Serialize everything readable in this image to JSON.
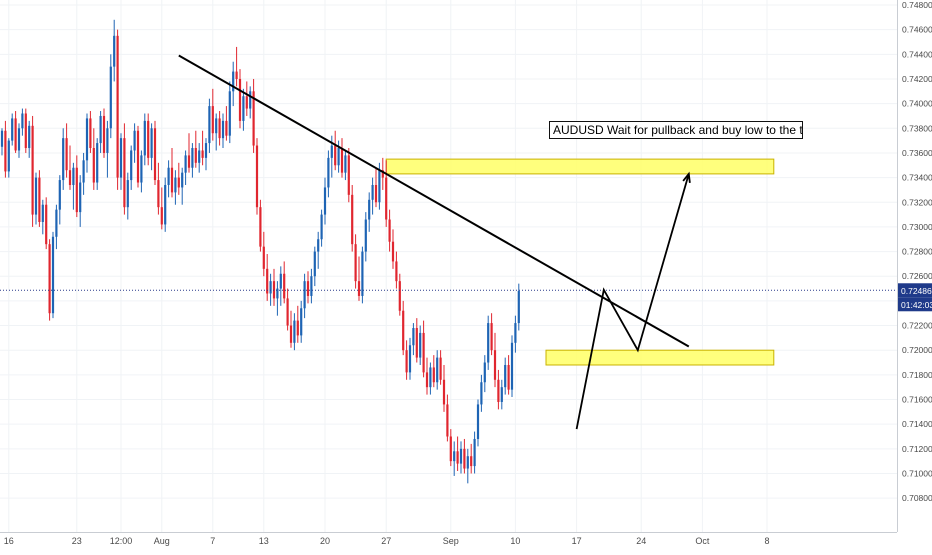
{
  "chart_data": {
    "type": "candlestick",
    "symbol": "AUDUSD",
    "annotation": "AUDUSD Wait for pullback and buy low to the tp",
    "last_price": "0.72486",
    "countdown": "01:42:03",
    "colors": {
      "up": "#1e64b4",
      "down": "#e0262f",
      "price_line": "#2a3a8c",
      "zone_fill": "#ffff66",
      "zone_stroke": "#c9b200",
      "drawing": "#000000",
      "price_label_bg": "#1f3a8a"
    },
    "ylim": [
      0.7072,
      0.748
    ],
    "y_ticks": [
      "0.74800",
      "0.74600",
      "0.74400",
      "0.74200",
      "0.74000",
      "0.73800",
      "0.73600",
      "0.73400",
      "0.73200",
      "0.73000",
      "0.72800",
      "0.72600",
      "0.72400",
      "0.72200",
      "0.72000",
      "0.71800",
      "0.71600",
      "0.71400",
      "0.71200",
      "0.71000",
      "0.70800"
    ],
    "x_ticks": [
      {
        "label": "16",
        "bar": 2
      },
      {
        "label": "23",
        "bar": 22
      },
      {
        "label": "12:00",
        "bar": 35
      },
      {
        "label": "Aug",
        "bar": 47
      },
      {
        "label": "7",
        "bar": 62
      },
      {
        "label": "13",
        "bar": 77
      },
      {
        "label": "20",
        "bar": 95
      },
      {
        "label": "27",
        "bar": 113
      },
      {
        "label": "Sep",
        "bar": 132
      },
      {
        "label": "10",
        "bar": 151
      },
      {
        "label": "17",
        "bar": 169
      },
      {
        "label": "24",
        "bar": 188
      },
      {
        "label": "Oct",
        "bar": 206
      },
      {
        "label": "8",
        "bar": 225
      }
    ],
    "candles": [
      [
        0.7365,
        0.738,
        0.7358,
        0.7378
      ],
      [
        0.7378,
        0.7386,
        0.734,
        0.7345
      ],
      [
        0.7345,
        0.7372,
        0.734,
        0.737
      ],
      [
        0.737,
        0.7392,
        0.7366,
        0.7388
      ],
      [
        0.7388,
        0.7394,
        0.736,
        0.7362
      ],
      [
        0.7362,
        0.7384,
        0.7356,
        0.738
      ],
      [
        0.738,
        0.7396,
        0.7374,
        0.7392
      ],
      [
        0.7392,
        0.7396,
        0.736,
        0.7364
      ],
      [
        0.7364,
        0.7386,
        0.7356,
        0.7382
      ],
      [
        0.7382,
        0.739,
        0.73,
        0.731
      ],
      [
        0.731,
        0.7344,
        0.7302,
        0.734
      ],
      [
        0.734,
        0.7346,
        0.73,
        0.7304
      ],
      [
        0.7304,
        0.7322,
        0.7294,
        0.7318
      ],
      [
        0.7318,
        0.7324,
        0.7282,
        0.7286
      ],
      [
        0.7286,
        0.729,
        0.7224,
        0.723
      ],
      [
        0.723,
        0.7296,
        0.7226,
        0.7292
      ],
      [
        0.7292,
        0.7318,
        0.7282,
        0.7314
      ],
      [
        0.7314,
        0.7342,
        0.7302,
        0.7338
      ],
      [
        0.7338,
        0.738,
        0.733,
        0.7372
      ],
      [
        0.7372,
        0.7384,
        0.734,
        0.7346
      ],
      [
        0.7346,
        0.7366,
        0.733,
        0.7334
      ],
      [
        0.7334,
        0.7352,
        0.7314,
        0.7348
      ],
      [
        0.7348,
        0.7358,
        0.7308,
        0.7312
      ],
      [
        0.7312,
        0.7342,
        0.73,
        0.7336
      ],
      [
        0.7336,
        0.736,
        0.7326,
        0.7354
      ],
      [
        0.7354,
        0.7392,
        0.7344,
        0.7388
      ],
      [
        0.7388,
        0.7394,
        0.736,
        0.7364
      ],
      [
        0.7364,
        0.738,
        0.733,
        0.7336
      ],
      [
        0.7336,
        0.7372,
        0.733,
        0.7368
      ],
      [
        0.7368,
        0.7394,
        0.736,
        0.739
      ],
      [
        0.739,
        0.7396,
        0.7356,
        0.736
      ],
      [
        0.736,
        0.7386,
        0.734,
        0.738
      ],
      [
        0.738,
        0.744,
        0.7372,
        0.743
      ],
      [
        0.743,
        0.7468,
        0.7418,
        0.7455
      ],
      [
        0.7455,
        0.746,
        0.733,
        0.734
      ],
      [
        0.734,
        0.7376,
        0.733,
        0.7372
      ],
      [
        0.7372,
        0.7384,
        0.731,
        0.7316
      ],
      [
        0.7316,
        0.7344,
        0.7306,
        0.7338
      ],
      [
        0.7338,
        0.7366,
        0.733,
        0.7362
      ],
      [
        0.7362,
        0.7384,
        0.7352,
        0.7378
      ],
      [
        0.7378,
        0.7382,
        0.7332,
        0.7336
      ],
      [
        0.7336,
        0.7362,
        0.7328,
        0.7358
      ],
      [
        0.7358,
        0.7392,
        0.735,
        0.7386
      ],
      [
        0.7386,
        0.7392,
        0.735,
        0.7356
      ],
      [
        0.7356,
        0.7384,
        0.7346,
        0.738
      ],
      [
        0.738,
        0.7386,
        0.7334,
        0.7338
      ],
      [
        0.7338,
        0.7352,
        0.731,
        0.7316
      ],
      [
        0.7316,
        0.7332,
        0.7298,
        0.7302
      ],
      [
        0.7302,
        0.734,
        0.7296,
        0.7334
      ],
      [
        0.7334,
        0.7354,
        0.7324,
        0.7348
      ],
      [
        0.7348,
        0.7364,
        0.7324,
        0.7328
      ],
      [
        0.7328,
        0.7346,
        0.7318,
        0.734
      ],
      [
        0.734,
        0.7352,
        0.7326,
        0.7332
      ],
      [
        0.7332,
        0.7348,
        0.7318,
        0.7344
      ],
      [
        0.7344,
        0.7362,
        0.7334,
        0.7358
      ],
      [
        0.7358,
        0.7376,
        0.7344,
        0.7348
      ],
      [
        0.7348,
        0.7368,
        0.734,
        0.7364
      ],
      [
        0.7364,
        0.7378,
        0.7348,
        0.7352
      ],
      [
        0.7352,
        0.7368,
        0.7344,
        0.7362
      ],
      [
        0.7362,
        0.7378,
        0.735,
        0.7356
      ],
      [
        0.7356,
        0.7372,
        0.7346,
        0.7368
      ],
      [
        0.7368,
        0.7404,
        0.736,
        0.7398
      ],
      [
        0.7398,
        0.7412,
        0.737,
        0.7376
      ],
      [
        0.7376,
        0.7392,
        0.7362,
        0.7388
      ],
      [
        0.7388,
        0.7394,
        0.7366,
        0.7372
      ],
      [
        0.7372,
        0.7392,
        0.7364,
        0.7386
      ],
      [
        0.7386,
        0.7398,
        0.737,
        0.7374
      ],
      [
        0.7374,
        0.7418,
        0.7368,
        0.741
      ],
      [
        0.741,
        0.7434,
        0.7398,
        0.7426
      ],
      [
        0.7426,
        0.7446,
        0.7414,
        0.742
      ],
      [
        0.742,
        0.7428,
        0.738,
        0.7386
      ],
      [
        0.7386,
        0.7412,
        0.7378,
        0.7406
      ],
      [
        0.7406,
        0.7418,
        0.739,
        0.7396
      ],
      [
        0.7396,
        0.7414,
        0.7388,
        0.741
      ],
      [
        0.741,
        0.742,
        0.736,
        0.7366
      ],
      [
        0.7366,
        0.7372,
        0.731,
        0.7316
      ],
      [
        0.7316,
        0.7322,
        0.728,
        0.7284
      ],
      [
        0.7284,
        0.7296,
        0.726,
        0.7266
      ],
      [
        0.7266,
        0.7278,
        0.724,
        0.7246
      ],
      [
        0.7246,
        0.7262,
        0.7236,
        0.7256
      ],
      [
        0.7256,
        0.7266,
        0.7236,
        0.7242
      ],
      [
        0.7242,
        0.7256,
        0.7228,
        0.725
      ],
      [
        0.725,
        0.7268,
        0.7236,
        0.7262
      ],
      [
        0.7262,
        0.7272,
        0.7238,
        0.7242
      ],
      [
        0.7242,
        0.725,
        0.7216,
        0.722
      ],
      [
        0.722,
        0.7232,
        0.7202,
        0.7206
      ],
      [
        0.7206,
        0.723,
        0.72,
        0.7224
      ],
      [
        0.7224,
        0.7236,
        0.7206,
        0.7212
      ],
      [
        0.7212,
        0.724,
        0.7206,
        0.7234
      ],
      [
        0.7234,
        0.7262,
        0.7226,
        0.7256
      ],
      [
        0.7256,
        0.7264,
        0.7238,
        0.7244
      ],
      [
        0.7244,
        0.7266,
        0.7238,
        0.726
      ],
      [
        0.726,
        0.7284,
        0.7252,
        0.728
      ],
      [
        0.728,
        0.7296,
        0.7266,
        0.729
      ],
      [
        0.729,
        0.7314,
        0.7284,
        0.731
      ],
      [
        0.731,
        0.734,
        0.7302,
        0.7332
      ],
      [
        0.7332,
        0.7362,
        0.7324,
        0.7356
      ],
      [
        0.7356,
        0.7374,
        0.734,
        0.7366
      ],
      [
        0.7366,
        0.7378,
        0.7346,
        0.735
      ],
      [
        0.735,
        0.737,
        0.7344,
        0.7364
      ],
      [
        0.7364,
        0.7372,
        0.734,
        0.7344
      ],
      [
        0.7344,
        0.7362,
        0.7338,
        0.7358
      ],
      [
        0.7358,
        0.7364,
        0.732,
        0.7326
      ],
      [
        0.7326,
        0.7334,
        0.728,
        0.7286
      ],
      [
        0.7286,
        0.7294,
        0.725,
        0.7256
      ],
      [
        0.7256,
        0.7276,
        0.724,
        0.7244
      ],
      [
        0.7244,
        0.7284,
        0.7238,
        0.728
      ],
      [
        0.728,
        0.7312,
        0.7272,
        0.7306
      ],
      [
        0.7306,
        0.7328,
        0.7296,
        0.7322
      ],
      [
        0.7322,
        0.734,
        0.731,
        0.7334
      ],
      [
        0.7334,
        0.7348,
        0.7316,
        0.732
      ],
      [
        0.732,
        0.7352,
        0.7314,
        0.7346
      ],
      [
        0.7346,
        0.7356,
        0.733,
        0.734
      ],
      [
        0.734,
        0.7354,
        0.73,
        0.7306
      ],
      [
        0.7306,
        0.7314,
        0.728,
        0.7288
      ],
      [
        0.7288,
        0.7298,
        0.7266,
        0.7272
      ],
      [
        0.7272,
        0.728,
        0.725,
        0.7256
      ],
      [
        0.7256,
        0.7262,
        0.7228,
        0.7232
      ],
      [
        0.7232,
        0.724,
        0.7196,
        0.72
      ],
      [
        0.72,
        0.7208,
        0.7176,
        0.7182
      ],
      [
        0.7182,
        0.721,
        0.7176,
        0.7204
      ],
      [
        0.7204,
        0.7222,
        0.7196,
        0.7218
      ],
      [
        0.7218,
        0.7226,
        0.719,
        0.7194
      ],
      [
        0.7194,
        0.722,
        0.7188,
        0.7214
      ],
      [
        0.7214,
        0.7224,
        0.7178,
        0.7182
      ],
      [
        0.7182,
        0.7194,
        0.7164,
        0.717
      ],
      [
        0.717,
        0.719,
        0.7164,
        0.7186
      ],
      [
        0.7186,
        0.7196,
        0.717,
        0.7174
      ],
      [
        0.7174,
        0.72,
        0.7168,
        0.7194
      ],
      [
        0.7194,
        0.72,
        0.7172,
        0.7176
      ],
      [
        0.7176,
        0.7188,
        0.715,
        0.7156
      ],
      [
        0.7156,
        0.7164,
        0.7126,
        0.713
      ],
      [
        0.713,
        0.7136,
        0.7106,
        0.711
      ],
      [
        0.711,
        0.7126,
        0.7098,
        0.7118
      ],
      [
        0.7118,
        0.713,
        0.7102,
        0.7108
      ],
      [
        0.7108,
        0.7126,
        0.71,
        0.712
      ],
      [
        0.712,
        0.7128,
        0.71,
        0.7104
      ],
      [
        0.7104,
        0.712,
        0.7092,
        0.7114
      ],
      [
        0.7114,
        0.7124,
        0.71,
        0.7106
      ],
      [
        0.7106,
        0.7134,
        0.71,
        0.7128
      ],
      [
        0.7128,
        0.716,
        0.7122,
        0.7156
      ],
      [
        0.7156,
        0.718,
        0.715,
        0.7174
      ],
      [
        0.7174,
        0.7196,
        0.7166,
        0.719
      ],
      [
        0.719,
        0.7228,
        0.7184,
        0.7222
      ],
      [
        0.7222,
        0.723,
        0.7196,
        0.72
      ],
      [
        0.72,
        0.7214,
        0.717,
        0.7176
      ],
      [
        0.7176,
        0.7184,
        0.7152,
        0.7158
      ],
      [
        0.7158,
        0.7176,
        0.7152,
        0.717
      ],
      [
        0.717,
        0.7194,
        0.7164,
        0.7188
      ],
      [
        0.7188,
        0.7196,
        0.7164,
        0.7168
      ],
      [
        0.7168,
        0.7212,
        0.7162,
        0.7206
      ],
      [
        0.7206,
        0.7228,
        0.7198,
        0.7222
      ],
      [
        0.7222,
        0.7254,
        0.7216,
        0.7248
      ]
    ]
  },
  "drawings": {
    "trendline": [
      [
        0.7439,
        52
      ],
      [
        0.7203,
        202
      ]
    ],
    "zones": [
      {
        "bar_start": 113,
        "bar_end": 227,
        "y_top": 0.7355,
        "y_bottom": 0.7343
      },
      {
        "bar_start": 160,
        "bar_end": 227,
        "y_top": 0.72,
        "y_bottom": 0.7188
      }
    ],
    "path": [
      [
        0.7136,
        169
      ],
      [
        0.7249,
        177
      ],
      [
        0.72,
        187
      ],
      [
        0.7343,
        202
      ]
    ]
  }
}
